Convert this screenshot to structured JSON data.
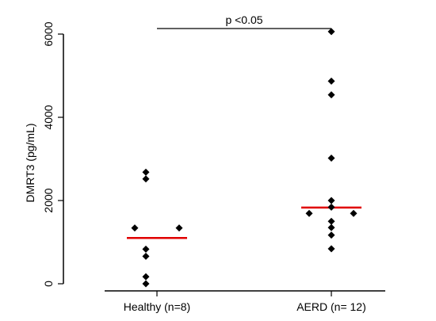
{
  "chart_data": {
    "type": "scatter",
    "title": "",
    "xlabel": "",
    "ylabel": "DMRT3 (pg/mL)",
    "categories": [
      "Healthy (n=8)",
      "AERD (n= 12)"
    ],
    "ylim": [
      0,
      6000
    ],
    "yticks": [
      "0",
      "2000",
      "4000",
      "6000"
    ],
    "series": [
      {
        "category": "Healthy (n=8)",
        "points": [
          {
            "offset": -1,
            "y": 2680
          },
          {
            "offset": -1,
            "y": 2520
          },
          {
            "offset": -2,
            "y": 1340
          },
          {
            "offset": 2,
            "y": 1340
          },
          {
            "offset": -1,
            "y": 830
          },
          {
            "offset": -1,
            "y": 660
          },
          {
            "offset": -1,
            "y": 170
          },
          {
            "offset": -1,
            "y": 0
          }
        ],
        "median": 1100
      },
      {
        "category": "AERD (n= 12)",
        "points": [
          {
            "offset": 0,
            "y": 6060
          },
          {
            "offset": 0,
            "y": 4870
          },
          {
            "offset": 0,
            "y": 4540
          },
          {
            "offset": 0,
            "y": 3020
          },
          {
            "offset": 0,
            "y": 2000
          },
          {
            "offset": 0,
            "y": 1840
          },
          {
            "offset": -2,
            "y": 1690
          },
          {
            "offset": 2,
            "y": 1690
          },
          {
            "offset": 0,
            "y": 1500
          },
          {
            "offset": 0,
            "y": 1350
          },
          {
            "offset": 0,
            "y": 1170
          },
          {
            "offset": 0,
            "y": 840
          }
        ],
        "median": 1830
      }
    ],
    "median_color": "#e00000",
    "point_color": "#000000",
    "annotation": {
      "text": "p <0.05",
      "from": "Healthy (n=8)",
      "to": "AERD (n= 12)"
    }
  }
}
